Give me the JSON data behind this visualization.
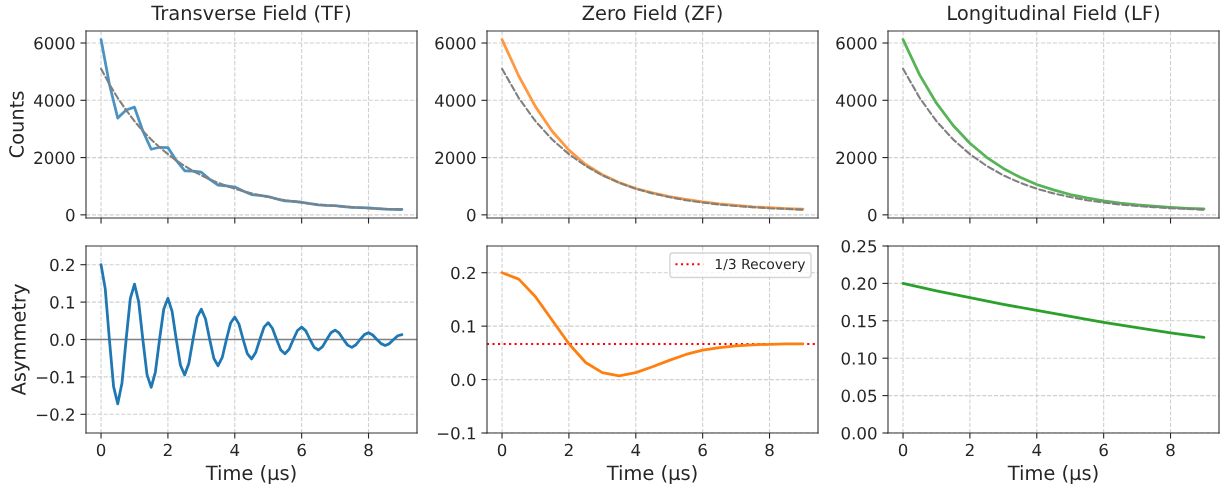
{
  "chart_data": [
    {
      "type": "line",
      "title": "Transverse Field (TF)",
      "ylabel": "Counts",
      "xlim": [
        -0.45,
        9.45
      ],
      "ylim": [
        -110,
        6420
      ],
      "xticks": [
        0,
        2,
        4,
        6,
        8
      ],
      "yticks": [
        0,
        2000,
        4000,
        6000
      ],
      "grid": true,
      "tick_labels": "y",
      "series": [
        {
          "color": "#4c92c3",
          "x": [
            0,
            0.25,
            0.5,
            0.75,
            1,
            1.25,
            1.5,
            1.75,
            2,
            2.25,
            2.5,
            2.75,
            3,
            3.25,
            3.5,
            3.75,
            4,
            4.25,
            4.5,
            4.75,
            5,
            5.25,
            5.5,
            5.75,
            6,
            6.25,
            6.5,
            6.75,
            7,
            7.25,
            7.5,
            7.75,
            8,
            8.25,
            8.5,
            8.75,
            9
          ],
          "values": [
            6120,
            4560,
            3380,
            3660,
            3760,
            2930,
            2290,
            2360,
            2350,
            1900,
            1540,
            1530,
            1490,
            1240,
            1040,
            1010,
            970,
            830,
            710,
            680,
            640,
            560,
            490,
            470,
            440,
            390,
            350,
            330,
            320,
            290,
            260,
            250,
            240,
            220,
            200,
            190,
            190
          ]
        },
        {
          "color": "#808080",
          "line_style": "dashed",
          "x": [
            0,
            0.25,
            0.5,
            0.75,
            1,
            1.25,
            1.5,
            1.75,
            2,
            2.25,
            2.5,
            2.75,
            3,
            3.25,
            3.5,
            3.75,
            4,
            4.25,
            4.5,
            4.75,
            5,
            5.25,
            5.5,
            5.75,
            6,
            6.25,
            6.5,
            6.75,
            7,
            7.25,
            7.5,
            7.75,
            8,
            8.25,
            8.5,
            8.75,
            9
          ],
          "values": [
            5100,
            4560,
            4080,
            3660,
            3270,
            2930,
            2630,
            2360,
            2120,
            1900,
            1710,
            1530,
            1380,
            1240,
            1120,
            1010,
            910,
            830,
            750,
            680,
            620,
            560,
            510,
            470,
            430,
            390,
            360,
            330,
            310,
            290,
            270,
            250,
            230,
            220,
            210,
            190,
            180
          ]
        }
      ]
    },
    {
      "type": "line",
      "title": "Zero Field (ZF)",
      "xlim": [
        -0.45,
        9.45
      ],
      "ylim": [
        -110,
        6420
      ],
      "xticks": [
        0,
        2,
        4,
        6,
        8
      ],
      "yticks": [
        0,
        2000,
        4000,
        6000
      ],
      "grid": true,
      "tick_labels": "y",
      "series": [
        {
          "color": "#ff9940",
          "x": [
            0,
            0.5,
            1,
            1.5,
            2,
            2.5,
            3,
            3.5,
            4,
            4.5,
            5,
            5.5,
            6,
            6.5,
            7,
            7.5,
            8,
            8.5,
            9
          ],
          "values": [
            6120,
            4850,
            3780,
            2920,
            2260,
            1760,
            1400,
            1130,
            920,
            770,
            640,
            540,
            450,
            380,
            330,
            280,
            250,
            220,
            200
          ]
        },
        {
          "color": "#808080",
          "line_style": "dashed",
          "x": [
            0,
            0.5,
            1,
            1.5,
            2,
            2.5,
            3,
            3.5,
            4,
            4.5,
            5,
            5.5,
            6,
            6.5,
            7,
            7.5,
            8,
            8.5,
            9
          ],
          "values": [
            5100,
            4080,
            3270,
            2630,
            2120,
            1710,
            1380,
            1120,
            910,
            750,
            620,
            510,
            430,
            360,
            310,
            270,
            230,
            210,
            180
          ]
        }
      ]
    },
    {
      "type": "line",
      "title": "Longitudinal Field (LF)",
      "xlim": [
        -0.45,
        9.45
      ],
      "ylim": [
        -110,
        6420
      ],
      "xticks": [
        0,
        2,
        4,
        6,
        8
      ],
      "yticks": [
        0,
        2000,
        4000,
        6000
      ],
      "grid": true,
      "tick_labels": "y",
      "series": [
        {
          "color": "#56b356",
          "x": [
            0,
            0.5,
            1,
            1.5,
            2,
            2.5,
            3,
            3.5,
            4,
            4.5,
            5,
            5.5,
            6,
            6.5,
            7,
            7.5,
            8,
            8.5,
            9
          ],
          "values": [
            6120,
            4880,
            3900,
            3120,
            2500,
            2010,
            1620,
            1310,
            1060,
            870,
            710,
            590,
            490,
            410,
            350,
            300,
            260,
            230,
            210
          ]
        },
        {
          "color": "#808080",
          "line_style": "dashed",
          "x": [
            0,
            0.5,
            1,
            1.5,
            2,
            2.5,
            3,
            3.5,
            4,
            4.5,
            5,
            5.5,
            6,
            6.5,
            7,
            7.5,
            8,
            8.5,
            9
          ],
          "values": [
            5100,
            4080,
            3270,
            2630,
            2120,
            1710,
            1380,
            1120,
            910,
            750,
            620,
            510,
            430,
            360,
            310,
            270,
            230,
            210,
            180
          ]
        }
      ]
    },
    {
      "type": "line",
      "xlabel": "Time (μs)",
      "ylabel": "Asymmetry",
      "xlim": [
        -0.45,
        9.45
      ],
      "ylim": [
        -0.25,
        0.25
      ],
      "xticks": [
        0,
        2,
        4,
        6,
        8
      ],
      "yticks": [
        {
          "value": -0.2,
          "label": "−0.2"
        },
        {
          "value": -0.1,
          "label": "−0.1"
        },
        {
          "value": 0,
          "label": "0.0"
        },
        0.1,
        0.2
      ],
      "grid": true,
      "ref_lines": [
        {
          "axis": "y",
          "value": 0,
          "color": "#808080",
          "line_style": "solid"
        }
      ],
      "series": [
        {
          "color": "#1f77b4",
          "x": [
            0,
            0.125,
            0.25,
            0.375,
            0.5,
            0.625,
            0.75,
            0.875,
            1,
            1.125,
            1.25,
            1.375,
            1.5,
            1.625,
            1.75,
            1.875,
            2,
            2.125,
            2.25,
            2.375,
            2.5,
            2.625,
            2.75,
            2.875,
            3,
            3.125,
            3.25,
            3.375,
            3.5,
            3.625,
            3.75,
            3.875,
            4,
            4.125,
            4.25,
            4.375,
            4.5,
            4.625,
            4.75,
            4.875,
            5,
            5.125,
            5.25,
            5.375,
            5.5,
            5.625,
            5.75,
            5.875,
            6,
            6.125,
            6.25,
            6.375,
            6.5,
            6.625,
            6.75,
            6.875,
            7,
            7.125,
            7.25,
            7.375,
            7.5,
            7.625,
            7.75,
            7.875,
            8,
            8.125,
            8.25,
            8.375,
            8.5,
            8.625,
            8.75,
            8.875,
            9
          ],
          "values": [
            0.2,
            0.136,
            0,
            -0.126,
            -0.172,
            -0.117,
            0,
            0.109,
            0.148,
            0.101,
            0,
            -0.094,
            -0.128,
            -0.087,
            0,
            0.081,
            0.11,
            0.075,
            0,
            -0.069,
            -0.095,
            -0.064,
            0,
            0.06,
            0.081,
            0.055,
            0,
            -0.051,
            -0.07,
            -0.048,
            0,
            0.044,
            0.06,
            0.041,
            0,
            -0.038,
            -0.052,
            -0.035,
            0,
            0.033,
            0.045,
            0.03,
            0,
            -0.028,
            -0.038,
            -0.026,
            0,
            0.024,
            0.033,
            0.023,
            0,
            -0.021,
            -0.028,
            -0.019,
            0,
            0.018,
            0.025,
            0.017,
            0,
            -0.015,
            -0.021,
            -0.014,
            0,
            0.013,
            0.018,
            0.012,
            0,
            -0.011,
            -0.016,
            -0.011,
            0,
            0.01,
            0.013
          ]
        }
      ]
    },
    {
      "type": "line",
      "xlabel": "Time (μs)",
      "xlim": [
        -0.45,
        9.45
      ],
      "ylim": [
        -0.1,
        0.25
      ],
      "xticks": [
        0,
        2,
        4,
        6,
        8
      ],
      "yticks": [
        {
          "value": -0.1,
          "label": "−0.1"
        },
        {
          "value": 0,
          "label": "0.0"
        },
        0.1,
        0.2
      ],
      "grid": true,
      "legend": "top right",
      "ref_lines": [
        {
          "axis": "y",
          "value": 0.0667,
          "label": "1/3 Recovery",
          "color": "#ff0000",
          "line_style": "dotted"
        }
      ],
      "series": [
        {
          "color": "#ff7f0e",
          "x": [
            0,
            0.5,
            1,
            1.5,
            2,
            2.5,
            3,
            3.5,
            4,
            4.5,
            5,
            5.5,
            6,
            6.5,
            7,
            7.5,
            8,
            8.5,
            9
          ],
          "values": [
            0.2,
            0.188,
            0.155,
            0.111,
            0.067,
            0.032,
            0.013,
            0.007,
            0.013,
            0.024,
            0.036,
            0.047,
            0.055,
            0.06,
            0.063,
            0.065,
            0.066,
            0.067,
            0.067
          ]
        }
      ]
    },
    {
      "type": "line",
      "xlabel": "Time (μs)",
      "xlim": [
        -0.45,
        9.45
      ],
      "ylim": [
        0,
        0.25
      ],
      "xticks": [
        0,
        2,
        4,
        6,
        8
      ],
      "yticks": [
        {
          "value": 0,
          "label": "0.00"
        },
        {
          "value": 0.05,
          "label": "0.05"
        },
        {
          "value": 0.1,
          "label": "0.10"
        },
        {
          "value": 0.15,
          "label": "0.15"
        },
        {
          "value": 0.2,
          "label": "0.20"
        },
        {
          "value": 0.25,
          "label": "0.25"
        }
      ],
      "grid": true,
      "series": [
        {
          "color": "#2ca02c",
          "x": [
            0,
            1,
            2,
            3,
            4,
            5,
            6,
            7,
            8,
            9
          ],
          "values": [
            0.2,
            0.19,
            0.181,
            0.172,
            0.164,
            0.156,
            0.148,
            0.141,
            0.134,
            0.128
          ]
        }
      ]
    }
  ]
}
